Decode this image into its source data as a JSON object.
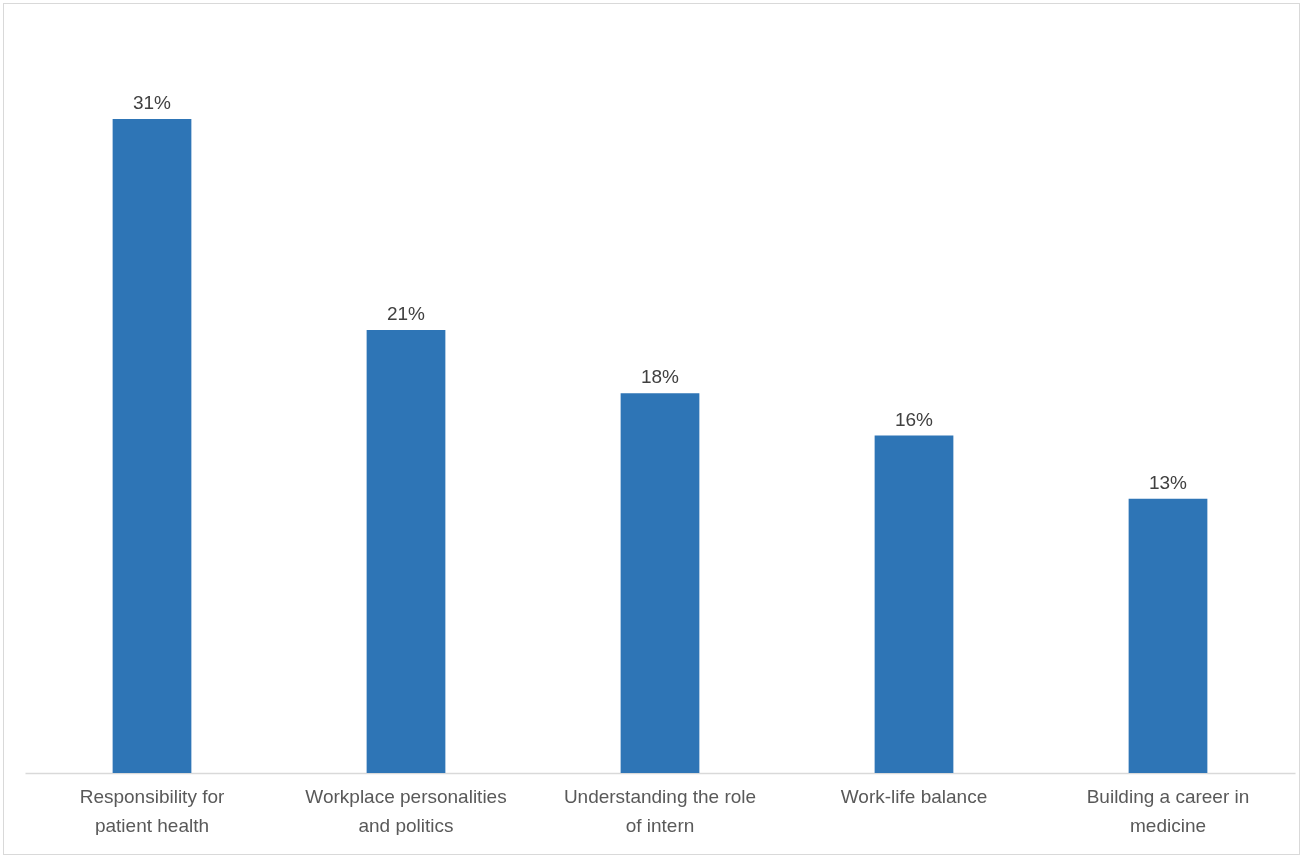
{
  "chart_data": {
    "type": "bar",
    "categories": [
      "Responsibility for patient health",
      "Workplace personalities and politics",
      "Understanding the role of intern",
      "Work-life balance",
      "Building a career in medicine"
    ],
    "values": [
      31,
      21,
      18,
      16,
      13
    ],
    "value_labels": [
      "31%",
      "21%",
      "18%",
      "16%",
      "13%"
    ],
    "color": "#2e75b6",
    "grid": false
  }
}
